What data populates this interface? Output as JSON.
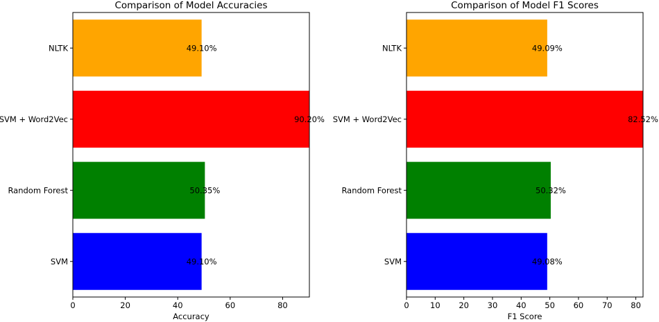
{
  "chart_data": [
    {
      "type": "bar",
      "orientation": "horizontal",
      "title": "Comparison of Model Accuracies",
      "xlabel": "Accuracy",
      "ylabel": "",
      "categories": [
        "SVM",
        "Random Forest",
        "SVM + Word2Vec",
        "NLTK"
      ],
      "values": [
        49.1,
        50.35,
        90.2,
        49.1
      ],
      "value_labels": [
        "49.10%",
        "50.35%",
        "90.20%",
        "49.10%"
      ],
      "colors": [
        "#0000ff",
        "#008000",
        "#ff0000",
        "#ffa500"
      ],
      "xlim": [
        0,
        90.2
      ],
      "xticks": [
        0,
        20,
        40,
        60,
        80
      ],
      "grid": false
    },
    {
      "type": "bar",
      "orientation": "horizontal",
      "title": "Comparison of Model F1 Scores",
      "xlabel": "F1 Score",
      "ylabel": "",
      "categories": [
        "SVM",
        "Random Forest",
        "SVM + Word2Vec",
        "NLTK"
      ],
      "values": [
        49.08,
        50.32,
        82.52,
        49.09
      ],
      "value_labels": [
        "49.08%",
        "50.32%",
        "82.52%",
        "49.09%"
      ],
      "colors": [
        "#0000ff",
        "#008000",
        "#ff0000",
        "#ffa500"
      ],
      "xlim": [
        0,
        82.52
      ],
      "xticks": [
        0,
        10,
        20,
        30,
        40,
        50,
        60,
        70,
        80
      ],
      "grid": false
    }
  ]
}
